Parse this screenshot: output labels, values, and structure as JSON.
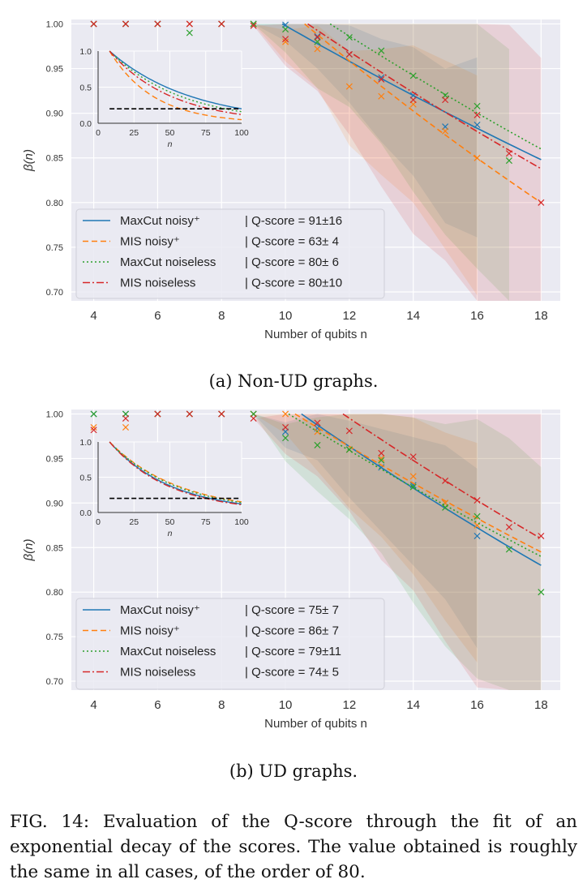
{
  "charts": [
    {
      "caption": "(a) Non-UD graphs.",
      "xlabel": "Number of qubits n",
      "ylabel": "β(n)",
      "yticks": [
        "0.70",
        "0.75",
        "0.80",
        "0.85",
        "0.90",
        "0.95",
        "1.00"
      ],
      "xticks": [
        "4",
        "6",
        "8",
        "10",
        "12",
        "14",
        "16",
        "18"
      ],
      "inset_xlabel": "n",
      "inset_xticks": [
        "0",
        "25",
        "50",
        "75",
        "100"
      ],
      "inset_yticks": [
        "0.0",
        "0.5",
        "1.0"
      ],
      "legend": [
        {
          "label": "MaxCut noisy⁺",
          "score": "| Q-score = 91±16"
        },
        {
          "label": "MIS noisy⁺",
          "score": "| Q-score = 63± 4"
        },
        {
          "label": "MaxCut noiseless",
          "score": "| Q-score = 80± 6"
        },
        {
          "label": "MIS noiseless",
          "score": "| Q-score = 80±10"
        }
      ]
    },
    {
      "caption": "(b) UD graphs.",
      "xlabel": "Number of qubits n",
      "ylabel": "β(n)",
      "yticks": [
        "0.70",
        "0.75",
        "0.80",
        "0.85",
        "0.90",
        "0.95",
        "1.00"
      ],
      "xticks": [
        "4",
        "6",
        "8",
        "10",
        "12",
        "14",
        "16",
        "18"
      ],
      "inset_xlabel": "n",
      "inset_xticks": [
        "0",
        "25",
        "50",
        "75",
        "100"
      ],
      "inset_yticks": [
        "0.0",
        "0.5",
        "1.0"
      ],
      "legend": [
        {
          "label": "MaxCut noisy⁺",
          "score": "| Q-score = 75± 7"
        },
        {
          "label": "MIS noisy⁺",
          "score": "| Q-score = 86± 7"
        },
        {
          "label": "MaxCut noiseless",
          "score": "| Q-score = 79±11"
        },
        {
          "label": "MIS noiseless",
          "score": "| Q-score = 74± 5"
        }
      ]
    }
  ],
  "figure_caption": "FIG. 14: Evaluation of the Q-score through the fit of an exponential decay of the scores. The value obtained is roughly the same in all cases, of the order of 80.",
  "colors": {
    "maxcut_noisy": "#1f77b4",
    "mis_noisy": "#ff7f0e",
    "maxcut_noiseless": "#2ca02c",
    "mis_noiseless": "#d62728",
    "plot_bg": "#eaeaf2"
  },
  "chart_data": [
    {
      "type": "line",
      "title": "(a) Non-UD graphs.",
      "xlabel": "Number of qubits n",
      "ylabel": "β(n)",
      "xlim": [
        3.3,
        18.6
      ],
      "ylim": [
        0.69,
        1.005
      ],
      "grid": true,
      "legend_position": "lower-left",
      "series": [
        {
          "name": "MaxCut noisy⁺",
          "color": "#1f77b4",
          "style": "solid",
          "q_score": "91±16",
          "fit_x": [
            9.9,
            18
          ],
          "fit_y": [
            1.0,
            0.848
          ],
          "points": [
            [
              4,
              1.0
            ],
            [
              5,
              1.0
            ],
            [
              6,
              1.0
            ],
            [
              7,
              1.0
            ],
            [
              8,
              1.0
            ],
            [
              9,
              1.0
            ],
            [
              10,
              0.999
            ],
            [
              11,
              0.986
            ],
            [
              12,
              0.966
            ],
            [
              13,
              0.94
            ],
            [
              14,
              0.92
            ],
            [
              15,
              0.885
            ],
            [
              16,
              0.887
            ]
          ]
        },
        {
          "name": "MIS noisy⁺",
          "color": "#ff7f0e",
          "style": "dashed",
          "q_score": "63± 4",
          "fit_x": [
            10.6,
            18
          ],
          "fit_y": [
            1.0,
            0.8
          ],
          "points": [
            [
              4,
              1.0
            ],
            [
              5,
              1.0
            ],
            [
              6,
              1.0
            ],
            [
              7,
              1.0
            ],
            [
              8,
              1.0
            ],
            [
              9,
              1.0
            ],
            [
              10,
              0.98
            ],
            [
              11,
              0.972
            ],
            [
              12,
              0.93
            ],
            [
              13,
              0.919
            ],
            [
              14,
              0.91
            ],
            [
              15,
              0.88
            ],
            [
              16,
              0.85
            ]
          ]
        },
        {
          "name": "MaxCut noiseless",
          "color": "#2ca02c",
          "style": "dotted",
          "q_score": "80± 6",
          "fit_x": [
            11.4,
            18
          ],
          "fit_y": [
            1.0,
            0.86
          ],
          "points": [
            [
              4,
              1.0
            ],
            [
              5,
              1.0
            ],
            [
              6,
              1.0
            ],
            [
              7,
              0.99
            ],
            [
              8,
              1.0
            ],
            [
              9,
              1.0
            ],
            [
              10,
              0.994
            ],
            [
              11,
              0.98
            ],
            [
              12,
              0.985
            ],
            [
              13,
              0.97
            ],
            [
              14,
              0.942
            ],
            [
              15,
              0.92
            ],
            [
              16,
              0.908
            ],
            [
              17,
              0.847
            ]
          ]
        },
        {
          "name": "MIS noiseless",
          "color": "#d62728",
          "style": "dashdot",
          "q_score": "80±10",
          "fit_x": [
            10.7,
            18
          ],
          "fit_y": [
            1.0,
            0.838
          ],
          "points": [
            [
              4,
              1.0
            ],
            [
              5,
              1.0
            ],
            [
              6,
              1.0
            ],
            [
              7,
              1.0
            ],
            [
              8,
              1.0
            ],
            [
              9,
              0.998
            ],
            [
              10,
              0.983
            ],
            [
              11,
              0.985
            ],
            [
              12,
              0.966
            ],
            [
              13,
              0.938
            ],
            [
              14,
              0.915
            ],
            [
              15,
              0.915
            ],
            [
              16,
              0.898
            ],
            [
              17,
              0.855
            ],
            [
              18,
              0.8
            ]
          ]
        }
      ],
      "inset": {
        "xlim": [
          0,
          100
        ],
        "ylim": [
          0,
          1.0
        ],
        "threshold": 0.2,
        "curves_end_y": {
          "MaxCut noisy⁺": 0.2,
          "MIS noisy⁺": 0.05,
          "MaxCut noiseless": 0.16,
          "MIS noiseless": 0.12
        }
      }
    },
    {
      "type": "line",
      "title": "(b) UD graphs.",
      "xlabel": "Number of qubits n",
      "ylabel": "β(n)",
      "xlim": [
        3.3,
        18.6
      ],
      "ylim": [
        0.69,
        1.005
      ],
      "grid": true,
      "legend_position": "lower-left",
      "series": [
        {
          "name": "MaxCut noisy⁺",
          "color": "#1f77b4",
          "style": "solid",
          "q_score": "75± 7",
          "fit_x": [
            10.5,
            18
          ],
          "fit_y": [
            1.0,
            0.83
          ],
          "points": [
            [
              4,
              1.0
            ],
            [
              5,
              1.0
            ],
            [
              6,
              1.0
            ],
            [
              7,
              1.0
            ],
            [
              8,
              1.0
            ],
            [
              9,
              1.0
            ],
            [
              10,
              0.98
            ],
            [
              11,
              0.984
            ],
            [
              12,
              0.96
            ],
            [
              13,
              0.94
            ],
            [
              14,
              0.92
            ],
            [
              15,
              0.9
            ],
            [
              16,
              0.863
            ]
          ]
        },
        {
          "name": "MIS noisy⁺",
          "color": "#ff7f0e",
          "style": "dashed",
          "q_score": "86± 7",
          "fit_x": [
            10.3,
            18
          ],
          "fit_y": [
            1.0,
            0.845
          ],
          "points": [
            [
              4,
              0.985
            ],
            [
              5,
              0.985
            ],
            [
              6,
              1.0
            ],
            [
              7,
              1.0
            ],
            [
              8,
              1.0
            ],
            [
              9,
              1.0
            ],
            [
              10,
              1.0
            ],
            [
              11,
              0.98
            ],
            [
              12,
              0.96
            ],
            [
              13,
              0.95
            ],
            [
              14,
              0.93
            ],
            [
              15,
              0.9
            ],
            [
              16,
              0.875
            ]
          ]
        },
        {
          "name": "MaxCut noiseless",
          "color": "#2ca02c",
          "style": "dotted",
          "q_score": "79±11",
          "fit_x": [
            10.1,
            18
          ],
          "fit_y": [
            1.0,
            0.84
          ],
          "points": [
            [
              4,
              1.0
            ],
            [
              5,
              1.0
            ],
            [
              6,
              1.0
            ],
            [
              7,
              1.0
            ],
            [
              8,
              1.0
            ],
            [
              9,
              1.0
            ],
            [
              10,
              0.973
            ],
            [
              11,
              0.965
            ],
            [
              12,
              0.96
            ],
            [
              13,
              0.948
            ],
            [
              14,
              0.918
            ],
            [
              15,
              0.895
            ],
            [
              16,
              0.885
            ],
            [
              17,
              0.848
            ],
            [
              18,
              0.8
            ]
          ]
        },
        {
          "name": "MIS noiseless",
          "color": "#d62728",
          "style": "dashdot",
          "q_score": "74± 5",
          "fit_x": [
            11.8,
            18
          ],
          "fit_y": [
            1.0,
            0.86
          ],
          "points": [
            [
              4,
              0.982
            ],
            [
              5,
              0.995
            ],
            [
              6,
              1.0
            ],
            [
              7,
              1.0
            ],
            [
              8,
              1.0
            ],
            [
              9,
              0.995
            ],
            [
              10,
              0.985
            ],
            [
              11,
              0.99
            ],
            [
              12,
              0.981
            ],
            [
              13,
              0.956
            ],
            [
              14,
              0.952
            ],
            [
              15,
              0.925
            ],
            [
              16,
              0.903
            ],
            [
              17,
              0.873
            ],
            [
              18,
              0.863
            ]
          ]
        }
      ],
      "inset": {
        "xlim": [
          0,
          100
        ],
        "ylim": [
          0,
          1.0
        ],
        "threshold": 0.2,
        "curves_end_y": {
          "MaxCut noisy⁺": 0.12,
          "MIS noisy⁺": 0.15,
          "MaxCut noiseless": 0.14,
          "MIS noiseless": 0.11
        }
      }
    }
  ]
}
